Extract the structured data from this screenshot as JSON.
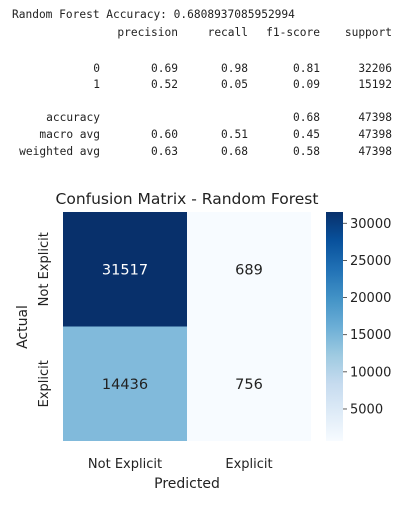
{
  "report": {
    "accuracy_line": "Random Forest Accuracy: 0.6808937085952994",
    "headers": [
      "precision",
      "recall",
      "f1-score",
      "support"
    ],
    "rows": [
      {
        "label": "0",
        "precision": "0.69",
        "recall": "0.98",
        "f1": "0.81",
        "support": "32206"
      },
      {
        "label": "1",
        "precision": "0.52",
        "recall": "0.05",
        "f1": "0.09",
        "support": "15192"
      },
      {
        "label": "accuracy",
        "precision": "",
        "recall": "",
        "f1": "0.68",
        "support": "47398"
      },
      {
        "label": "macro avg",
        "precision": "0.60",
        "recall": "0.51",
        "f1": "0.45",
        "support": "47398"
      },
      {
        "label": "weighted avg",
        "precision": "0.63",
        "recall": "0.68",
        "f1": "0.58",
        "support": "47398"
      }
    ]
  },
  "chart_data": {
    "type": "heatmap",
    "title": "Confusion Matrix - Random Forest",
    "xlabel": "Predicted",
    "ylabel": "Actual",
    "x_categories": [
      "Not Explicit",
      "Explicit"
    ],
    "y_categories": [
      "Not Explicit",
      "Explicit"
    ],
    "values": [
      [
        31517,
        689
      ],
      [
        14436,
        756
      ]
    ],
    "colormap": "Blues",
    "colorbar": {
      "min": 689,
      "max": 31517,
      "ticks": [
        5000,
        10000,
        15000,
        20000,
        25000,
        30000
      ]
    }
  }
}
